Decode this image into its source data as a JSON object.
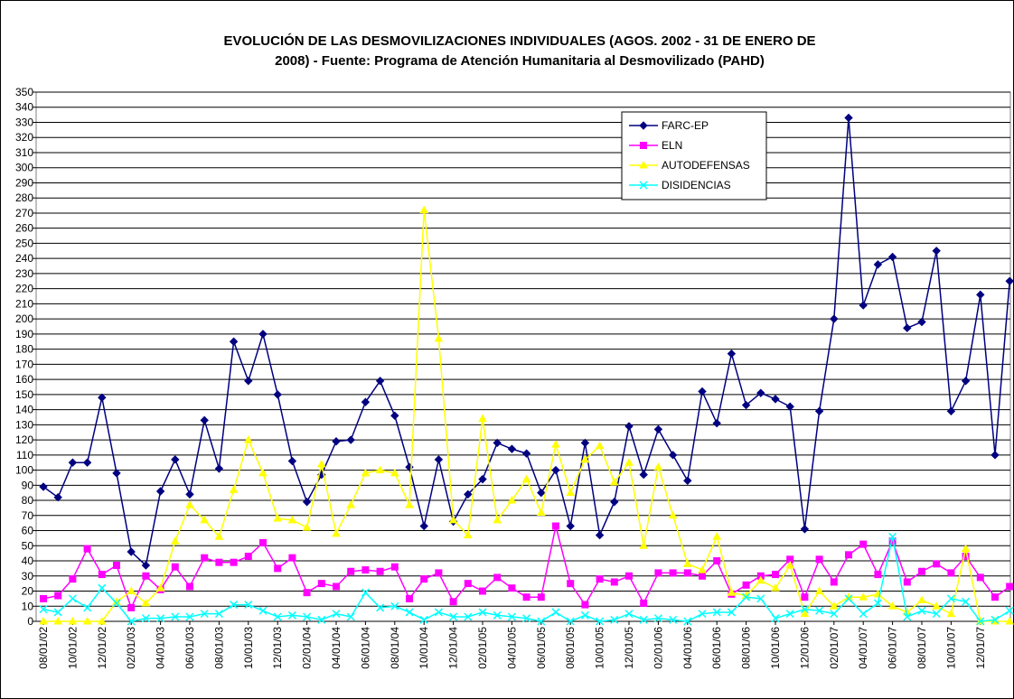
{
  "chart_data": {
    "type": "line",
    "title": [
      "EVOLUCIÓN DE LAS DESMOVILIZACIONES INDIVIDUALES (AGOS. 2002 - 31 DE ENERO DE",
      "2008) - Fuente: Programa de Atención Humanitaria al Desmovilizado (PAHD)"
    ],
    "categories": [
      "08/01/02",
      null,
      "10/01/02",
      null,
      "12/01/02",
      null,
      "02/01/03",
      null,
      "04/01/03",
      null,
      "06/01/03",
      null,
      "08/01/03",
      null,
      "10/01/03",
      null,
      "12/01/03",
      null,
      "02/01/04",
      null,
      "04/01/04",
      null,
      "06/01/04",
      null,
      "08/01/04",
      null,
      "10/01/04",
      null,
      "12/01/04",
      null,
      "02/01/05",
      null,
      "04/01/05",
      null,
      "06/01/05",
      null,
      "08/01/05",
      null,
      "10/01/05",
      null,
      "12/01/05",
      null,
      "02/01/06",
      null,
      "04/01/06",
      null,
      "06/01/06",
      null,
      "08/01/06",
      null,
      "10/01/06",
      null,
      "12/01/06",
      null,
      "02/01/07",
      null,
      "04/01/07",
      null,
      "06/01/07",
      null,
      "08/01/07",
      null,
      "10/01/07",
      null,
      "12/01/07",
      null,
      null
    ],
    "series": [
      {
        "name": "FARC-EP",
        "color": "#000080",
        "marker": "diamond",
        "values": [
          89,
          82,
          105,
          105,
          148,
          98,
          46,
          37,
          86,
          107,
          84,
          133,
          101,
          185,
          159,
          190,
          150,
          106,
          79,
          97,
          119,
          120,
          145,
          159,
          136,
          102,
          63,
          107,
          66,
          84,
          94,
          118,
          114,
          111,
          85,
          100,
          63,
          118,
          57,
          79,
          129,
          97,
          127,
          110,
          93,
          152,
          131,
          177,
          143,
          151,
          147,
          142,
          61,
          139,
          200,
          333,
          209,
          236,
          241,
          194,
          198,
          245,
          139,
          159,
          216,
          110,
          225
        ]
      },
      {
        "name": "ELN",
        "color": "#ff00ff",
        "marker": "square",
        "values": [
          15,
          17,
          28,
          48,
          31,
          37,
          9,
          30,
          21,
          36,
          23,
          42,
          39,
          39,
          43,
          52,
          35,
          42,
          19,
          25,
          23,
          33,
          34,
          33,
          36,
          15,
          28,
          32,
          13,
          25,
          20,
          29,
          22,
          16,
          16,
          63,
          25,
          11,
          28,
          26,
          30,
          12,
          32,
          32,
          32,
          30,
          40,
          18,
          24,
          30,
          31,
          41,
          16,
          41,
          26,
          44,
          51,
          31,
          53,
          26,
          33,
          38,
          32,
          43,
          29,
          16,
          23
        ]
      },
      {
        "name": "AUTODEFENSAS",
        "color": "#ffff00",
        "marker": "triangle",
        "values": [
          0,
          0,
          0,
          0,
          0,
          13,
          20,
          12,
          22,
          53,
          77,
          67,
          56,
          87,
          120,
          98,
          68,
          67,
          62,
          104,
          58,
          77,
          98,
          100,
          98,
          77,
          272,
          187,
          67,
          57,
          134,
          67,
          80,
          94,
          72,
          117,
          85,
          107,
          116,
          92,
          105,
          50,
          102,
          70,
          38,
          34,
          56,
          19,
          17,
          27,
          22,
          37,
          5,
          20,
          10,
          16,
          16,
          18,
          10,
          6,
          14,
          10,
          5,
          48,
          0,
          0,
          0
        ]
      },
      {
        "name": "DISIDENCIAS",
        "color": "#00ffff",
        "marker": "x",
        "values": [
          8,
          6,
          15,
          9,
          22,
          12,
          0,
          2,
          2,
          3,
          3,
          5,
          5,
          11,
          11,
          7,
          3,
          4,
          3,
          1,
          5,
          3,
          19,
          9,
          10,
          6,
          1,
          6,
          3,
          3,
          6,
          4,
          3,
          2,
          0,
          6,
          0,
          4,
          0,
          1,
          5,
          1,
          2,
          1,
          0,
          5,
          6,
          6,
          16,
          15,
          2,
          5,
          8,
          7,
          5,
          15,
          5,
          12,
          56,
          3,
          7,
          5,
          15,
          13,
          0,
          1,
          7
        ]
      }
    ],
    "ylim": [
      0,
      350
    ],
    "yticks": [
      0,
      10,
      20,
      30,
      40,
      50,
      60,
      70,
      80,
      90,
      100,
      110,
      120,
      130,
      140,
      150,
      160,
      170,
      180,
      190,
      200,
      210,
      220,
      230,
      240,
      250,
      260,
      270,
      280,
      290,
      300,
      310,
      320,
      330,
      340,
      350
    ],
    "grid": true,
    "legend": "upper-right"
  }
}
